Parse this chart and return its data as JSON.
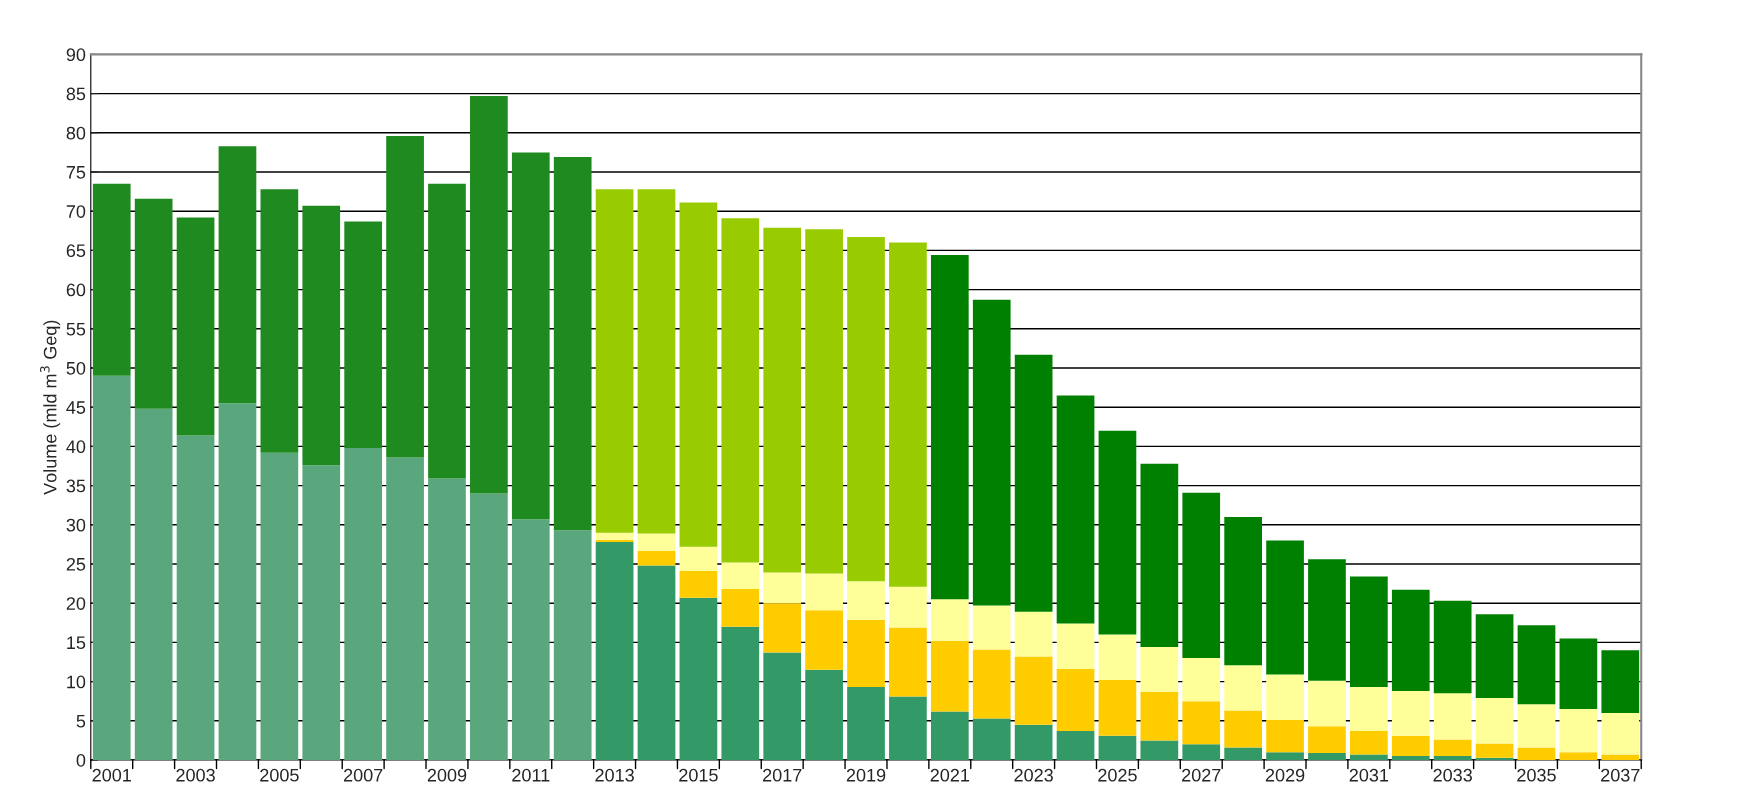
{
  "chart_data": {
    "type": "bar",
    "stacked": true,
    "ylabel": "Volume (mld m$^{3}$ Geq)",
    "categories": [
      "2001",
      null,
      "2003",
      null,
      "2005",
      null,
      "2007",
      null,
      "2009",
      null,
      "2011",
      null,
      "2013",
      null,
      "2015",
      null,
      "2017",
      null,
      "2019",
      null,
      "2021",
      null,
      "2023",
      null,
      "2025",
      null,
      "2027",
      null,
      "2029",
      null,
      "2031",
      null,
      "2033",
      null,
      "2035",
      null,
      "2037"
    ],
    "series": [
      {
        "color": "#5aa77d",
        "values": [
          49.0,
          44.8,
          41.4,
          45.5,
          39.2,
          37.6,
          39.8,
          38.6,
          35.9,
          34.0,
          30.7,
          29.3,
          null,
          null,
          null,
          null,
          null,
          null,
          null,
          null,
          null,
          null,
          null,
          null,
          null,
          null,
          null,
          null,
          null,
          null,
          null,
          null,
          null,
          null,
          null,
          null,
          null
        ]
      },
      {
        "color": "#1f8a1f",
        "values": [
          24.5,
          26.8,
          27.8,
          32.8,
          33.6,
          33.1,
          28.9,
          41.0,
          37.6,
          50.7,
          46.8,
          47.6,
          null,
          null,
          null,
          null,
          null,
          null,
          null,
          null,
          null,
          null,
          null,
          null,
          null,
          null,
          null,
          null,
          null,
          null,
          null,
          null,
          null,
          null,
          null,
          null,
          null
        ]
      },
      {
        "color": "#339966",
        "values": [
          null,
          null,
          null,
          null,
          null,
          null,
          null,
          null,
          null,
          null,
          null,
          null,
          27.8,
          24.8,
          20.7,
          17.0,
          13.7,
          11.5,
          9.3,
          8.1,
          6.2,
          5.3,
          4.5,
          3.7,
          3.1,
          2.5,
          2.0,
          1.6,
          1.0,
          0.9,
          0.7,
          0.5,
          0.5,
          0.3,
          0,
          0,
          0
        ]
      },
      {
        "color": "#ffcc00",
        "values": [
          null,
          null,
          null,
          null,
          null,
          null,
          null,
          null,
          null,
          null,
          null,
          null,
          0.3,
          1.9,
          3.4,
          4.8,
          6.3,
          7.6,
          8.6,
          8.8,
          9.0,
          8.8,
          8.7,
          7.9,
          7.1,
          6.2,
          5.5,
          4.7,
          4.1,
          3.4,
          3.0,
          2.6,
          2.1,
          1.8,
          1.6,
          1.0,
          0.7
        ]
      },
      {
        "color": "#ffff99",
        "values": [
          null,
          null,
          null,
          null,
          null,
          null,
          null,
          null,
          null,
          null,
          null,
          null,
          0.9,
          2.2,
          3.1,
          3.4,
          3.9,
          4.7,
          4.9,
          5.2,
          5.3,
          5.6,
          5.7,
          5.8,
          5.8,
          5.7,
          5.5,
          5.8,
          5.8,
          5.8,
          5.6,
          5.7,
          5.9,
          5.8,
          5.5,
          5.5,
          5.3
        ]
      },
      {
        "color": "#99cc00",
        "values": [
          null,
          null,
          null,
          null,
          null,
          null,
          null,
          null,
          null,
          null,
          null,
          null,
          43.8,
          43.9,
          43.9,
          43.9,
          44.0,
          43.9,
          43.9,
          43.9,
          null,
          null,
          null,
          null,
          null,
          null,
          null,
          null,
          null,
          null,
          null,
          null,
          null,
          null,
          null,
          null,
          null
        ]
      },
      {
        "color": "#008000",
        "values": [
          null,
          null,
          null,
          null,
          null,
          null,
          null,
          null,
          null,
          null,
          null,
          null,
          null,
          null,
          null,
          null,
          null,
          null,
          null,
          null,
          43.9,
          39.0,
          32.8,
          29.1,
          26.0,
          23.4,
          21.1,
          18.9,
          17.1,
          15.5,
          14.1,
          12.9,
          11.8,
          10.7,
          10.1,
          9.0,
          8.0
        ]
      }
    ],
    "ylim": [
      0,
      90
    ],
    "yticks": [
      0,
      5,
      10,
      15,
      20,
      25,
      30,
      35,
      40,
      45,
      50,
      55,
      60,
      65,
      70,
      75,
      80,
      85,
      90
    ],
    "grid": "y"
  }
}
